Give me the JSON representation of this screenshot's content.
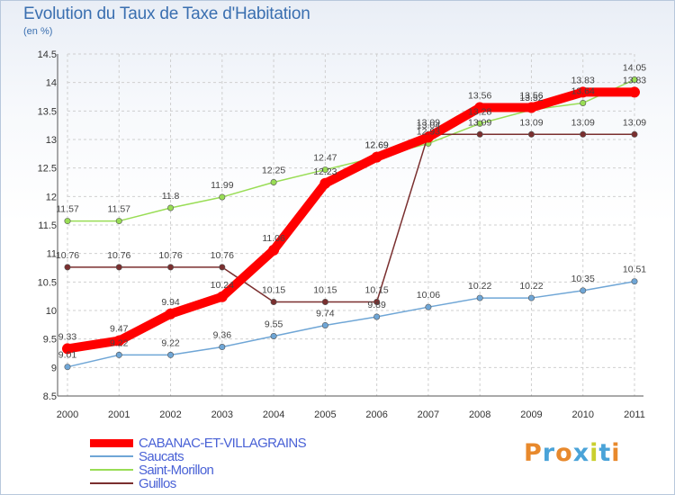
{
  "header": {
    "title": "Evolution du Taux de Taxe d'Habitation",
    "subtitle": "(en %)"
  },
  "logo": {
    "text": "Proxiti",
    "letters": [
      "P",
      "r",
      "o",
      "x",
      "i",
      "t",
      "i"
    ],
    "colors": [
      "#e8892c",
      "#4aa3d8",
      "#e8892c",
      "#4aa3d8",
      "#c9cf2e",
      "#4aa3d8",
      "#e8892c"
    ]
  },
  "chart_data": {
    "type": "line",
    "title": "Evolution du Taux de Taxe d'Habitation",
    "ylabel": "(en %)",
    "xlabel": "",
    "x": [
      "2000",
      "2001",
      "2002",
      "2003",
      "2004",
      "2005",
      "2006",
      "2007",
      "2008",
      "2009",
      "2010",
      "2011"
    ],
    "ylim": [
      8.5,
      14.5
    ],
    "yticks": [
      "8.5",
      "9",
      "9.5",
      "10",
      "10.5",
      "11",
      "11.5",
      "12",
      "12.5",
      "13",
      "13.5",
      "14",
      "14.5"
    ],
    "grid": true,
    "legend_position": "bottom-left",
    "series": [
      {
        "name": "CABANAC-ET-VILLAGRAINS",
        "color": "#ff0000",
        "values": [
          9.33,
          9.47,
          9.94,
          10.24,
          11.06,
          12.23,
          12.69,
          13.04,
          13.56,
          13.56,
          13.83,
          13.83
        ],
        "labels": [
          "9.33",
          "9.47",
          "9.94",
          "10.24",
          "11.06",
          "12.23",
          "12.69",
          "13.04",
          "13.56",
          "13.56",
          "13.83",
          "13.83"
        ]
      },
      {
        "name": "Saucats",
        "color": "#6fa6d6",
        "values": [
          9.01,
          9.22,
          9.22,
          9.36,
          9.55,
          9.74,
          9.89,
          10.06,
          10.22,
          10.22,
          10.35,
          10.51
        ],
        "labels": [
          "9.01",
          "9.22",
          "9.22",
          "9.36",
          "9.55",
          "9.74",
          "9.89",
          "10.06",
          "10.22",
          "10.22",
          "10.35",
          "10.51"
        ]
      },
      {
        "name": "Saint-Morillon",
        "color": "#99dd55",
        "values": [
          11.57,
          11.57,
          11.8,
          11.99,
          12.25,
          12.47,
          12.69,
          12.93,
          13.28,
          13.52,
          13.64,
          14.05
        ],
        "labels": [
          "11.57",
          "11.57",
          "11.8",
          "11.99",
          "12.25",
          "12.47",
          "12.69",
          "12.93",
          "13.28",
          "13.52",
          "13.64",
          "14.05"
        ]
      },
      {
        "name": "Guillos",
        "color": "#7a2f2f",
        "values": [
          10.76,
          10.76,
          10.76,
          10.76,
          10.15,
          10.15,
          10.15,
          13.09,
          13.09,
          13.09,
          13.09,
          13.09
        ],
        "labels": [
          "10.76",
          "10.76",
          "10.76",
          "10.76",
          "10.15",
          "10.15",
          "10.15",
          "13.09",
          "13.09",
          "13.09",
          "13.09",
          "13.09"
        ]
      }
    ]
  }
}
